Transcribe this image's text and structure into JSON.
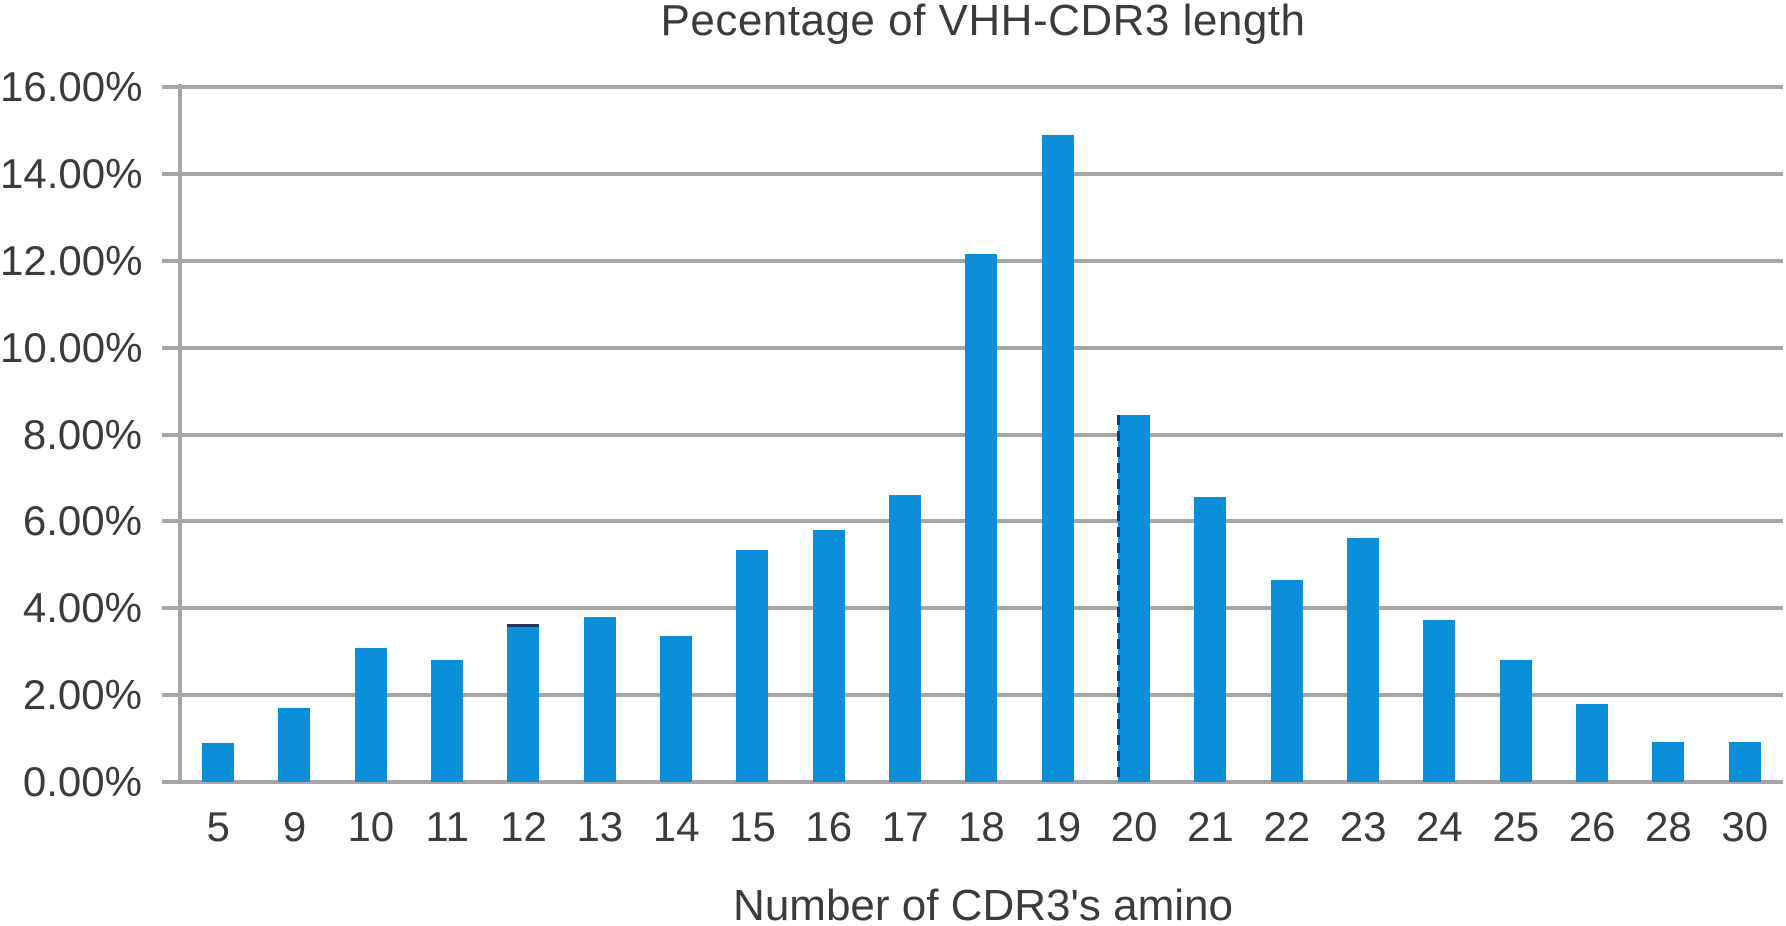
{
  "colors": {
    "bar": "#0b8fd8",
    "accent": "#1f3864",
    "grid": "#a6a6a6",
    "text": "#3e3a39",
    "background": "#ffffff"
  },
  "chart_data": {
    "type": "bar",
    "title": "Pecentage of VHH-CDR3 length",
    "xlabel": "Number of CDR3's amino",
    "ylabel": "",
    "ylim": [
      0,
      16
    ],
    "grid": true,
    "legend_position": "none",
    "y_ticks": [
      "16.00%",
      "14.00%",
      "12.00%",
      "10.00%",
      "8.00%",
      "6.00%",
      "4.00%",
      "2.00%",
      "0.00%"
    ],
    "categories": [
      "5",
      "9",
      "10",
      "11",
      "12",
      "13",
      "14",
      "15",
      "16",
      "17",
      "18",
      "19",
      "20",
      "21",
      "22",
      "23",
      "24",
      "25",
      "26",
      "28",
      "30"
    ],
    "values": [
      0.9,
      1.7,
      3.08,
      2.81,
      3.64,
      3.79,
      3.35,
      5.35,
      5.81,
      6.6,
      12.15,
      14.9,
      8.45,
      6.55,
      4.64,
      5.62,
      3.72,
      2.81,
      1.79,
      0.91,
      0.92
    ],
    "bar_accents": {
      "12": "top-line",
      "20": "left-dashed"
    }
  }
}
